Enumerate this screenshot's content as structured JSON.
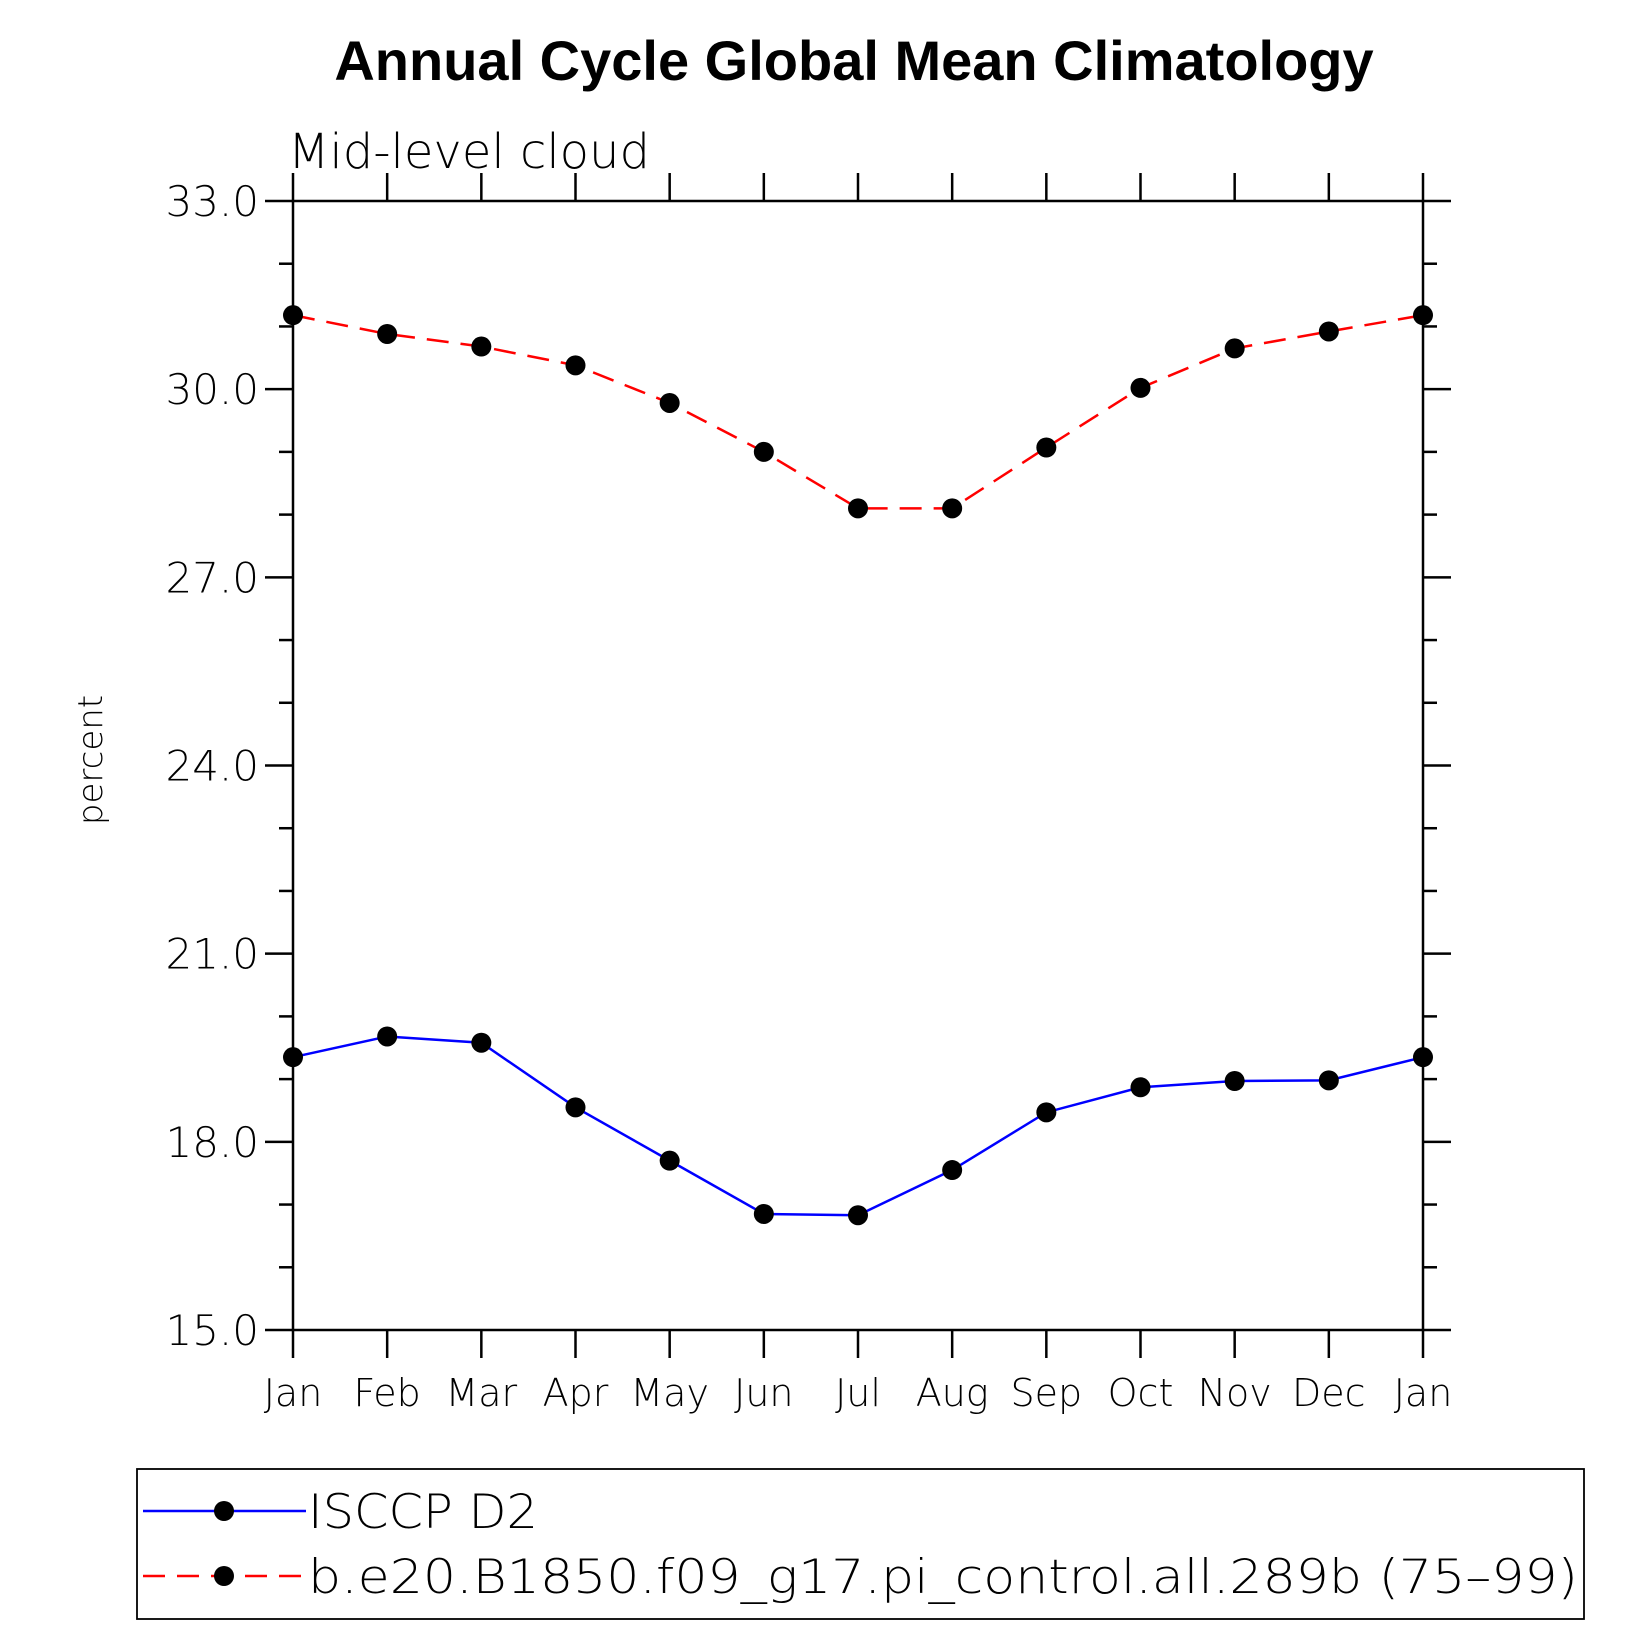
{
  "chart_data": {
    "type": "line",
    "title": "Annual Cycle Global Mean Climatology",
    "subtitle": "Mid-level cloud",
    "xlabel": "",
    "ylabel": "percent",
    "ylim": [
      15.0,
      33.0
    ],
    "yticks": [
      "15.0",
      "18.0",
      "21.0",
      "24.0",
      "27.0",
      "30.0",
      "33.0"
    ],
    "ytick_values": [
      15,
      18,
      21,
      24,
      27,
      30,
      33
    ],
    "y_minor_step": 1.0,
    "categories": [
      "Jan",
      "Feb",
      "Mar",
      "Apr",
      "May",
      "Jun",
      "Jul",
      "Aug",
      "Sep",
      "Oct",
      "Nov",
      "Dec",
      "Jan"
    ],
    "grid": false,
    "legend_position": "bottom",
    "series": [
      {
        "name": "ISCCP D2",
        "color": "#0000ff",
        "dash": "solid",
        "values": [
          19.35,
          19.68,
          19.58,
          18.55,
          17.7,
          16.85,
          16.83,
          17.55,
          18.47,
          18.87,
          18.97,
          18.98,
          19.35
        ]
      },
      {
        "name": "b.e20.B1850.f09_g17.pi_control.all.289b (75–99)",
        "color": "#ff0000",
        "dash": "dashed",
        "values": [
          31.18,
          30.88,
          30.68,
          30.38,
          29.78,
          29.0,
          28.1,
          28.1,
          29.07,
          30.02,
          30.65,
          30.92,
          31.18
        ]
      }
    ],
    "marker_color": "#000000"
  }
}
